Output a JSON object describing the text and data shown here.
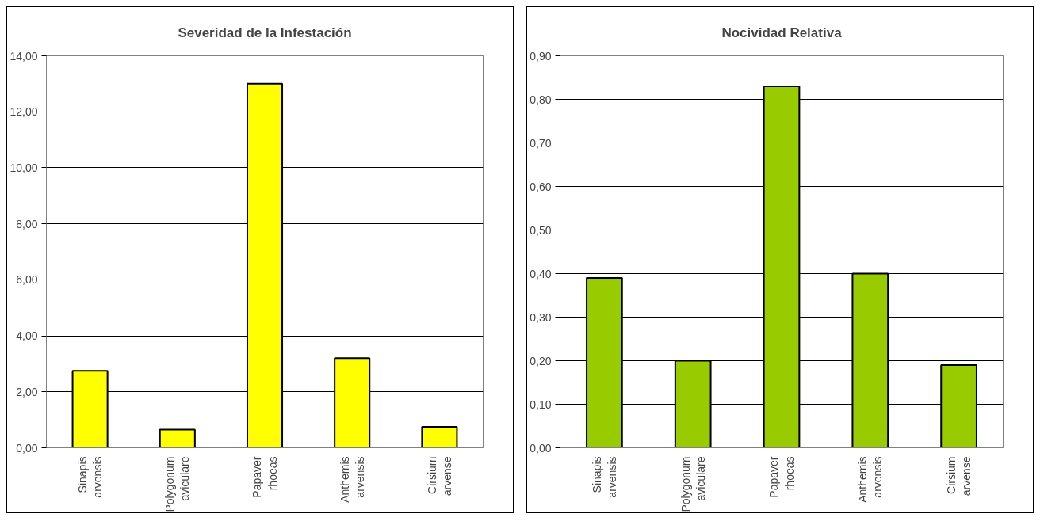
{
  "chart_data": [
    {
      "type": "bar",
      "title": "Severidad de la Infestación",
      "categories": [
        "Sinapis arvensis",
        "Polygonum aviculare",
        "Papaver rhoeas",
        "Anthemis arvensis",
        "Cirsium arvense"
      ],
      "values": [
        2.75,
        0.65,
        13.0,
        3.2,
        0.75
      ],
      "color": "#ffff00",
      "ylim": [
        0,
        14
      ],
      "yticks": [
        {
          "value": 0,
          "label": "0,00"
        },
        {
          "value": 2,
          "label": "2,00"
        },
        {
          "value": 4,
          "label": "4,00"
        },
        {
          "value": 6,
          "label": "6,00"
        },
        {
          "value": 8,
          "label": "8,00"
        },
        {
          "value": 10,
          "label": "10,00"
        },
        {
          "value": 12,
          "label": "12,00"
        },
        {
          "value": 14,
          "label": "14,00"
        }
      ],
      "grid": "y"
    },
    {
      "type": "bar",
      "title": "Nocividad Relativa",
      "categories": [
        "Sinapis arvensis",
        "Polygonum aviculare",
        "Papaver rhoeas",
        "Anthemis arvensis",
        "Cirsium arvense"
      ],
      "values": [
        0.39,
        0.2,
        0.83,
        0.4,
        0.19
      ],
      "color": "#99cc00",
      "ylim": [
        0,
        0.9
      ],
      "yticks": [
        {
          "value": 0,
          "label": "0,00"
        },
        {
          "value": 0.1,
          "label": "0,10"
        },
        {
          "value": 0.2,
          "label": "0,20"
        },
        {
          "value": 0.3,
          "label": "0,30"
        },
        {
          "value": 0.4,
          "label": "0,40"
        },
        {
          "value": 0.5,
          "label": "0,50"
        },
        {
          "value": 0.6,
          "label": "0,60"
        },
        {
          "value": 0.7,
          "label": "0,70"
        },
        {
          "value": 0.8,
          "label": "0,80"
        },
        {
          "value": 0.9,
          "label": "0,90"
        }
      ],
      "grid": "y"
    }
  ]
}
